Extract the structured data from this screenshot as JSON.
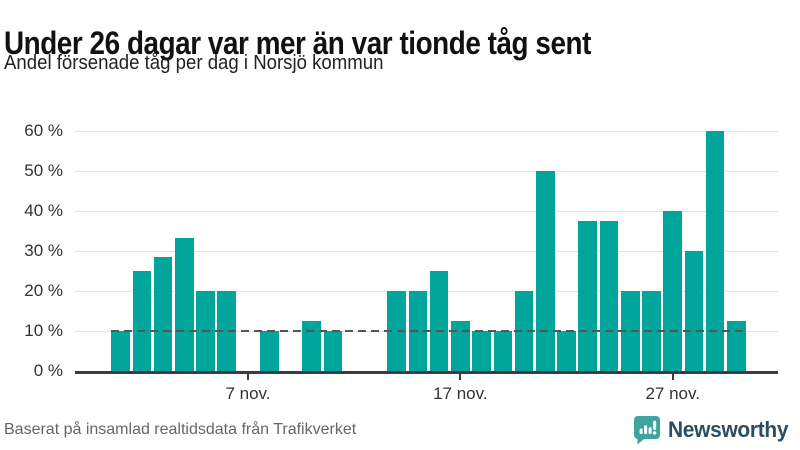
{
  "chart_data": {
    "type": "bar",
    "title": "Under 26 dagar var mer än var tionde tåg sent",
    "subtitle": "Andel försenade tåg per dag i Norsjö kommun",
    "xlabel": "",
    "ylabel": "",
    "ylim": [
      0,
      60
    ],
    "grid": true,
    "legend": "none",
    "categories": [
      "1 nov",
      "2 nov",
      "3 nov",
      "4 nov",
      "5 nov",
      "6 nov",
      "7 nov",
      "8 nov",
      "9 nov",
      "10 nov",
      "11 nov",
      "12 nov",
      "13 nov",
      "14 nov",
      "15 nov",
      "16 nov",
      "17 nov",
      "18 nov",
      "19 nov",
      "20 nov",
      "21 nov",
      "22 nov",
      "23 nov",
      "24 nov",
      "25 nov",
      "26 nov",
      "27 nov",
      "28 nov",
      "29 nov",
      "30 nov"
    ],
    "values": [
      10,
      25,
      28.6,
      33.3,
      20,
      20,
      0,
      10,
      0,
      12.5,
      10,
      0,
      0,
      20,
      20,
      25,
      12.5,
      10,
      10,
      20,
      50,
      10,
      37.5,
      37.5,
      20,
      20,
      40,
      30,
      60,
      12.5
    ],
    "yticks": [
      {
        "value": 0,
        "label": "0 %"
      },
      {
        "value": 10,
        "label": "10 %"
      },
      {
        "value": 20,
        "label": "20 %"
      },
      {
        "value": 30,
        "label": "30 %"
      },
      {
        "value": 40,
        "label": "40 %"
      },
      {
        "value": 50,
        "label": "50 %"
      },
      {
        "value": 60,
        "label": "60 %"
      }
    ],
    "xticks": [
      {
        "position": 7,
        "label": "7 nov."
      },
      {
        "position": 17,
        "label": "17 nov."
      },
      {
        "position": 27,
        "label": "27 nov."
      }
    ],
    "reference_line": {
      "value": 10,
      "style": "dashed",
      "color": "#555555"
    },
    "bar_color": "#00a59c",
    "grid_color": "#e3e3e3",
    "axis_color": "#3d3d3d",
    "tick_label_color": "#333333"
  },
  "footer": {
    "source": "Baserat på insamlad realtidsdata från Trafikverket",
    "brand": "Newsworthy",
    "brand_color": "#2b4c63",
    "brand_icon": "speech-bubble-bar-chart-exclamation",
    "icon_color": "#3fa39e"
  }
}
